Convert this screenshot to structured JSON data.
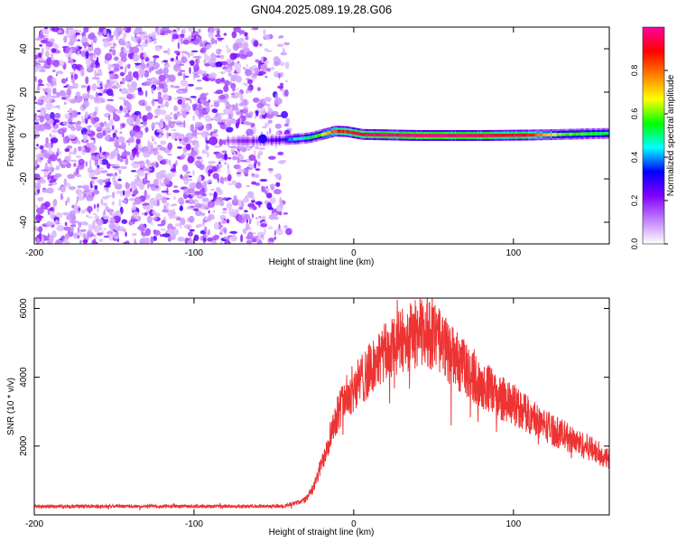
{
  "title": "GN04.2025.089.19.28.G06",
  "chart_data": [
    {
      "type": "heatmap",
      "xlabel": "Height of straight line (km)",
      "ylabel": "Frequency (Hz)",
      "xlim": [
        -200,
        160
      ],
      "ylim": [
        -50,
        50
      ],
      "xticks": [
        -200,
        -100,
        0,
        100
      ],
      "yticks": [
        -40,
        -20,
        0,
        20,
        40
      ],
      "xtick_labels": [
        "-200",
        "-100",
        "0",
        "100"
      ],
      "ytick_labels": [
        "-40",
        "-20",
        "0",
        "20",
        "40"
      ],
      "noise_region_x": [
        -200,
        -40
      ],
      "noise_amplitude_range": [
        0.05,
        0.25
      ],
      "ridge": [
        {
          "x": -80,
          "freq": -2.5,
          "amp": 0.15
        },
        {
          "x": -60,
          "freq": -2.5,
          "amp": 0.2
        },
        {
          "x": -45,
          "freq": -2.0,
          "amp": 0.3
        },
        {
          "x": -35,
          "freq": -1.5,
          "amp": 0.45
        },
        {
          "x": -28,
          "freq": -1.0,
          "amp": 0.5
        },
        {
          "x": -20,
          "freq": 0.5,
          "amp": 0.65
        },
        {
          "x": -12,
          "freq": 2.0,
          "amp": 0.85
        },
        {
          "x": -5,
          "freq": 1.8,
          "amp": 0.85
        },
        {
          "x": 5,
          "freq": 0.5,
          "amp": 0.95
        },
        {
          "x": 40,
          "freq": 0.0,
          "amp": 1.0
        },
        {
          "x": 80,
          "freq": 0.0,
          "amp": 0.95
        },
        {
          "x": 110,
          "freq": 0.2,
          "amp": 0.9
        },
        {
          "x": 130,
          "freq": 0.5,
          "amp": 0.6
        },
        {
          "x": 160,
          "freq": 1.0,
          "amp": 0.5
        }
      ],
      "colorbar": {
        "label": "Normalized spectral amplitude",
        "range": [
          0,
          1
        ],
        "ticks": [
          0,
          0.2,
          0.4,
          0.6,
          0.8
        ],
        "tick_labels": [
          "0.0",
          "0.2",
          "0.4",
          "0.6",
          "0.8"
        ],
        "colors": [
          "#ffffff",
          "#c080ff",
          "#8000ff",
          "#0000ff",
          "#00ffff",
          "#00ff00",
          "#ffff00",
          "#ff8000",
          "#ff0000",
          "#ff00a0"
        ]
      }
    },
    {
      "type": "line",
      "xlabel": "Height of straight line (km)",
      "ylabel": "SNR (10 * v/v)",
      "xlim": [
        -200,
        160
      ],
      "ylim": [
        0,
        6300
      ],
      "xticks": [
        -200,
        -100,
        0,
        100
      ],
      "yticks": [
        2000,
        4000,
        6000
      ],
      "xtick_labels": [
        "-200",
        "-100",
        "0",
        "100"
      ],
      "ytick_labels": [
        "2000",
        "4000",
        "6000"
      ],
      "series": [
        {
          "name": "SNR",
          "color": "#ee3333",
          "envelope_x": [
            -200,
            -50,
            -40,
            -30,
            -25,
            -20,
            -15,
            -10,
            -5,
            0,
            10,
            20,
            30,
            40,
            50,
            60,
            70,
            80,
            90,
            100,
            110,
            120,
            130,
            140,
            150,
            160
          ],
          "envelope_y": [
            250,
            250,
            280,
            450,
            800,
            1500,
            2300,
            3000,
            3400,
            3700,
            4200,
            4700,
            5050,
            5300,
            5200,
            4700,
            4200,
            3800,
            3450,
            3200,
            2900,
            2600,
            2350,
            2100,
            1900,
            1600
          ],
          "noise_fraction": 0.12
        }
      ]
    }
  ]
}
